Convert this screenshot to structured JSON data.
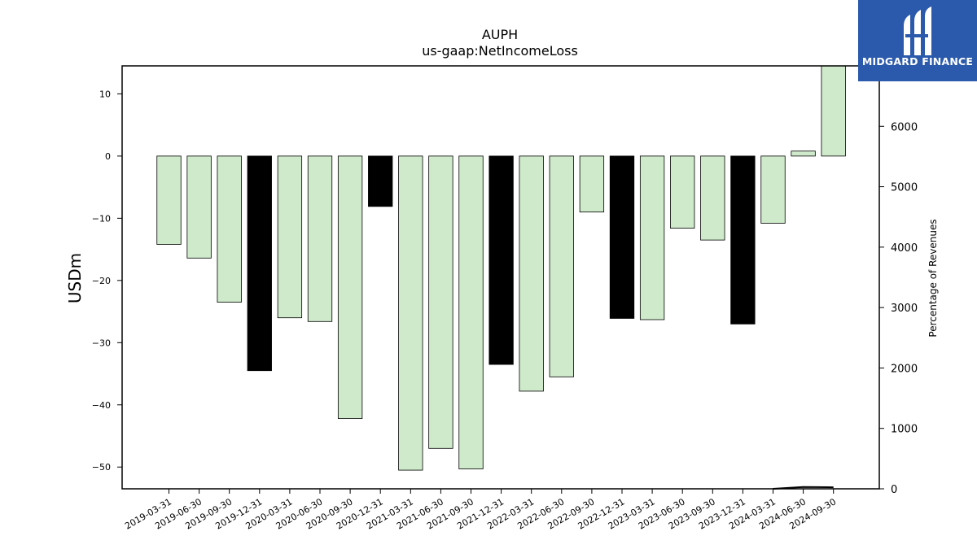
{
  "chart_data": {
    "type": "bar",
    "title": "AUPH",
    "subtitle": "us-gaap:NetIncomeLoss",
    "ylabel": "USDm",
    "y2label": "Percentage of Revenues",
    "ylim": [
      -53.5,
      14.5
    ],
    "y2lim": [
      0,
      7000
    ],
    "yticks": [
      10,
      0,
      -10,
      -20,
      -30,
      -40,
      -50
    ],
    "y2ticks": [
      0,
      1000,
      2000,
      3000,
      4000,
      5000,
      6000,
      7000
    ],
    "grid": false,
    "categories": [
      "2019-03-31",
      "2019-06-30",
      "2019-09-30",
      "2019-12-31",
      "2020-03-31",
      "2020-06-30",
      "2020-09-30",
      "2020-12-31",
      "2021-03-31",
      "2021-06-30",
      "2021-09-30",
      "2021-12-31",
      "2022-03-31",
      "2022-06-30",
      "2022-09-30",
      "2022-12-31",
      "2023-03-31",
      "2023-06-30",
      "2023-09-30",
      "2023-12-31",
      "2024-03-31",
      "2024-06-30",
      "2024-09-30"
    ],
    "values": [
      -14.2,
      -16.4,
      -23.5,
      -34.5,
      -26.0,
      -26.6,
      -42.2,
      -8.1,
      -50.5,
      -47.0,
      -50.3,
      -33.5,
      -37.8,
      -35.5,
      -9.0,
      -26.1,
      -26.3,
      -11.6,
      -13.5,
      -27.0,
      -10.8,
      0.8,
      14.5
    ],
    "bar_colors": [
      "#cfeacb",
      "#cfeacb",
      "#cfeacb",
      "#000000",
      "#cfeacb",
      "#cfeacb",
      "#cfeacb",
      "#000000",
      "#cfeacb",
      "#cfeacb",
      "#cfeacb",
      "#000000",
      "#cfeacb",
      "#cfeacb",
      "#cfeacb",
      "#000000",
      "#cfeacb",
      "#cfeacb",
      "#cfeacb",
      "#000000",
      "#cfeacb",
      "#cfeacb",
      "#cfeacb"
    ],
    "pct_line": {
      "x": [
        "2024-03-31",
        "2024-06-30",
        "2024-09-30"
      ],
      "values": [
        0,
        30,
        25
      ],
      "color": "#000000"
    }
  },
  "logo": {
    "text": "MIDGARD FINANCE",
    "background": "#2b5aac",
    "icon": "midgard-logo-icon"
  }
}
